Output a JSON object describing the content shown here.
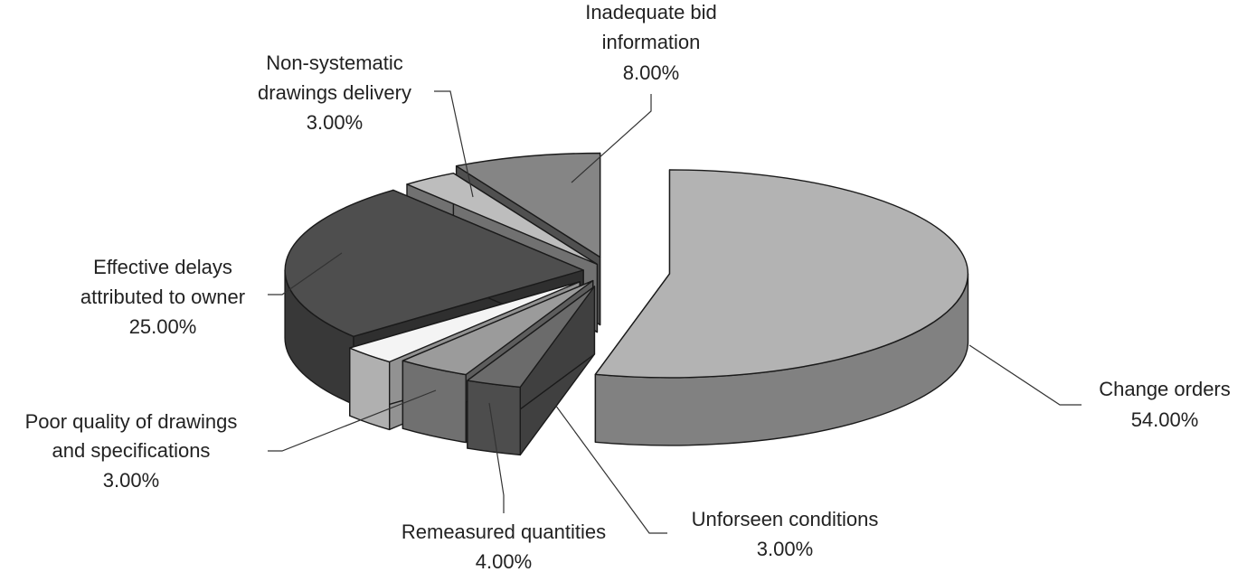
{
  "chart_data": {
    "type": "pie",
    "style": "3d-exploded",
    "value_format": "percent",
    "slices": [
      {
        "label": "Change orders",
        "value": 54.0,
        "color": "#b3b3b3",
        "value_text": "54.00%"
      },
      {
        "label": "Unforseen conditions",
        "value": 3.0,
        "color": "#6b6b6b",
        "value_text": "3.00%"
      },
      {
        "label": "Remeasured quantities",
        "value": 4.0,
        "color": "#9b9b9b",
        "value_text": "4.00%"
      },
      {
        "label": "Poor quality of drawings and specifications",
        "value": 3.0,
        "color": "#f4f4f4",
        "value_text": "3.00%"
      },
      {
        "label": "Effective delays attributed to owner",
        "value": 25.0,
        "color": "#4e4e4e",
        "value_text": "25.00%"
      },
      {
        "label": "Non-systematic drawings delivery",
        "value": 3.0,
        "color": "#bdbdbd",
        "value_text": "3.00%"
      },
      {
        "label": "Inadequate bid information",
        "value": 8.0,
        "color": "#858585",
        "value_text": "8.00%"
      }
    ]
  }
}
